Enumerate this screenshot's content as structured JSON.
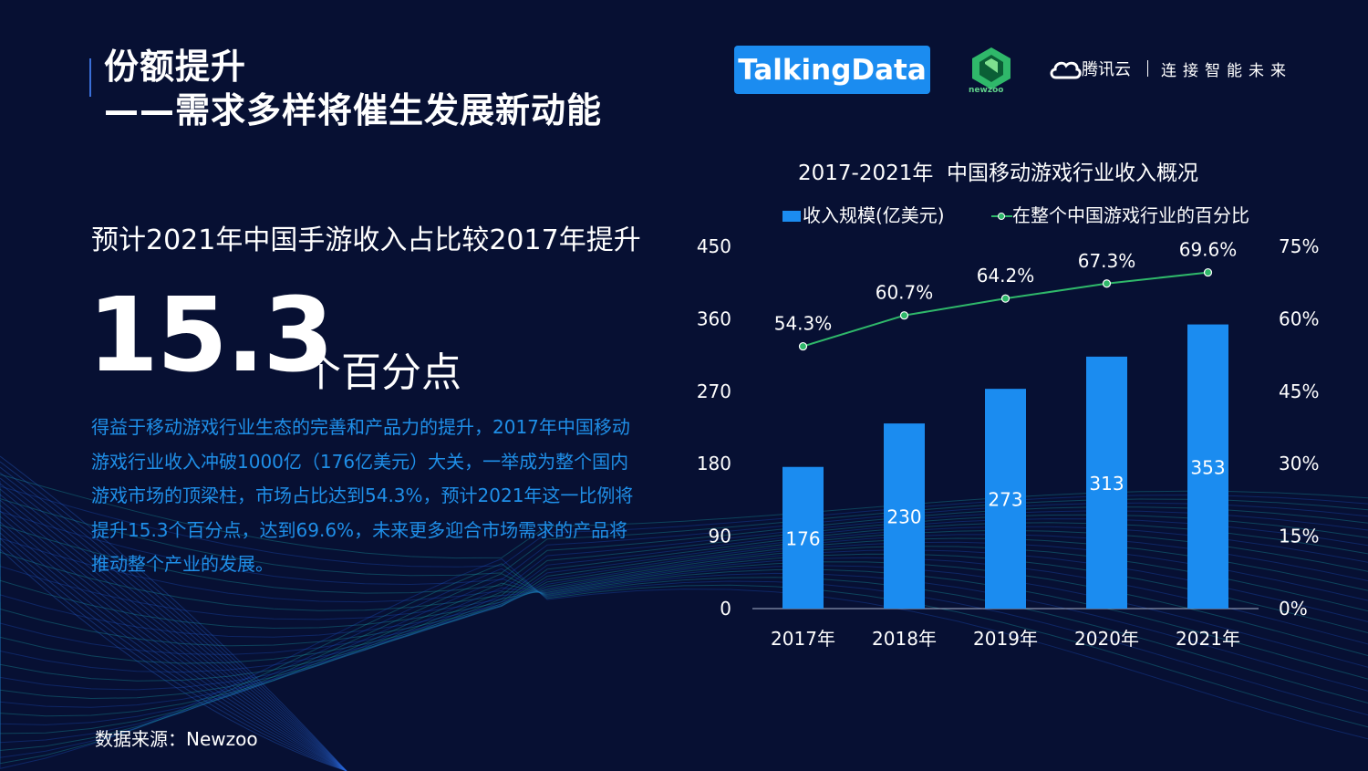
{
  "header": {
    "title_line1": "份额提升",
    "title_line2": "——需求多样将催生发展新动能"
  },
  "logos": {
    "talkingdata": "TalkingData",
    "newzoo": "newzoo",
    "tencent_cloud": "腾讯云",
    "tencent_slogan": "连接智能未来"
  },
  "headline": {
    "subhead": "预计2021年中国手游收入占比较2017年提升",
    "big_number": "15.3",
    "big_unit": "个百分点",
    "description": "得益于移动游戏行业生态的完善和产品力的提升，2017年中国移动游戏行业收入冲破1000亿（176亿美元）大关，一举成为整个国内游戏市场的顶梁柱，市场占比达到54.3%，预计2021年这一比例将提升15.3个百分点，达到69.6%，未来更多迎合市场需求的产品将推动整个产业的发展。"
  },
  "footer": {
    "source": "数据来源：Newzoo"
  },
  "colors": {
    "background": "#071033",
    "bar": "#1b8cf0",
    "line": "#2fb86a",
    "accent_text": "#1f8fe8"
  },
  "chart_data": {
    "type": "bar",
    "title": "2017-2021年  中国移动游戏行业收入概况",
    "categories": [
      "2017年",
      "2018年",
      "2019年",
      "2020年",
      "2021年"
    ],
    "series": [
      {
        "name": "收入规模(亿美元)",
        "type": "bar",
        "axis": "left",
        "values": [
          176,
          230,
          273,
          313,
          353
        ],
        "labels": [
          "176",
          "230",
          "273",
          "313",
          "353"
        ]
      },
      {
        "name": "在整个中国游戏行业的百分比",
        "type": "line",
        "axis": "right",
        "values": [
          54.3,
          60.7,
          64.2,
          67.3,
          69.6
        ],
        "labels": [
          "54.3%",
          "60.7%",
          "64.2%",
          "67.3%",
          "69.6%"
        ]
      }
    ],
    "y_left": {
      "ylim": [
        0,
        450
      ],
      "ticks": [
        "0",
        "90",
        "180",
        "270",
        "360",
        "450"
      ]
    },
    "y_right": {
      "ylim": [
        0,
        75
      ],
      "ticks": [
        "0%",
        "15%",
        "30%",
        "45%",
        "60%",
        "75%"
      ]
    },
    "legend_position": "top",
    "grid": false
  }
}
